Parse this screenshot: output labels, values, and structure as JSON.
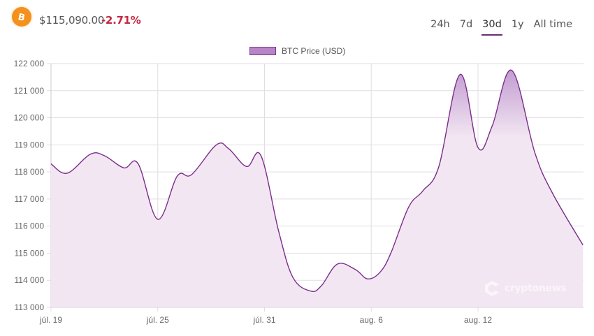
{
  "header": {
    "coin_icon": "bitcoin-icon",
    "price": "$115,090.00",
    "change": "-2.71%",
    "change_color": "#c2273f"
  },
  "tabs": [
    {
      "label": "24h",
      "active": false
    },
    {
      "label": "7d",
      "active": false
    },
    {
      "label": "30d",
      "active": true
    },
    {
      "label": "1y",
      "active": false
    },
    {
      "label": "All time",
      "active": false
    }
  ],
  "legend": {
    "label": "BTC Price (USD)",
    "swatch_color": "#b785c7",
    "border_color": "#7b3a8c"
  },
  "watermark": {
    "text": "cryptonews"
  },
  "colors": {
    "line": "#7b2d8b",
    "fill": "#f2e6f2",
    "fill_peak": "#c29bd0",
    "grid": "#e2dde3",
    "axis_text": "#666666",
    "accent": "#6b2d74"
  },
  "chart_data": {
    "type": "area",
    "title": "",
    "legend": [
      "BTC Price (USD)"
    ],
    "legend_position": "top",
    "xlabel": "",
    "ylabel": "",
    "ylim": [
      113000,
      122000
    ],
    "yticks": [
      "122 000",
      "121 000",
      "120 000",
      "119 000",
      "118 000",
      "117 000",
      "116 000",
      "115 000",
      "114 000",
      "113 000"
    ],
    "ytick_values": [
      122000,
      121000,
      120000,
      119000,
      118000,
      117000,
      116000,
      115000,
      114000,
      113000
    ],
    "xticks": [
      "júl. 19",
      "júl. 25",
      "júl. 31",
      "aug. 6",
      "aug. 12"
    ],
    "xtick_days": [
      0,
      6,
      12,
      18,
      24
    ],
    "grid": true,
    "series": [
      {
        "name": "BTC Price (USD)",
        "x_days": [
          0,
          0.9,
          2.2,
          3.0,
          4.1,
          4.9,
          6.0,
          7.1,
          7.9,
          9.3,
          10.0,
          11.0,
          11.8,
          12.8,
          13.6,
          14.6,
          15.2,
          16.1,
          17.1,
          17.8,
          18.5,
          19.1,
          20.1,
          20.9,
          21.8,
          23.0,
          24.0,
          24.8,
          25.9,
          27.2,
          28.2,
          29.9
        ],
        "values": [
          118300,
          117950,
          118650,
          118600,
          118150,
          118300,
          116250,
          117850,
          117900,
          119000,
          118850,
          118200,
          118600,
          115800,
          114100,
          113600,
          113800,
          114600,
          114400,
          114050,
          114300,
          115000,
          116700,
          117300,
          118200,
          121600,
          118900,
          119700,
          121750,
          118700,
          117200,
          115300
        ]
      }
    ]
  }
}
